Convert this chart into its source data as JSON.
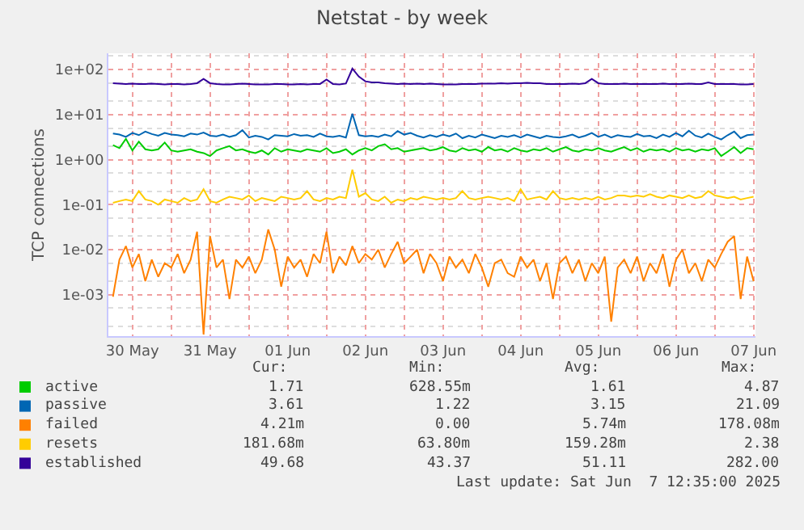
{
  "chart_data": {
    "type": "line",
    "title": "Netstat - by week",
    "ylabel": "TCP connections",
    "x": [
      "2025-05-30T06:00",
      "2025-05-30T08:00",
      "2025-05-30T10:00",
      "2025-05-30T12:00",
      "2025-05-30T14:00",
      "2025-05-30T16:00",
      "2025-05-30T18:00",
      "2025-05-30T20:00",
      "2025-05-30T22:00",
      "2025-05-31T00:00",
      "2025-05-31T02:00",
      "2025-05-31T04:00",
      "2025-05-31T06:00",
      "2025-05-31T08:00",
      "2025-05-31T10:00",
      "2025-05-31T12:00",
      "2025-05-31T14:00",
      "2025-05-31T16:00",
      "2025-05-31T18:00",
      "2025-05-31T20:00",
      "2025-05-31T22:00",
      "2025-06-01T00:00",
      "2025-06-01T02:00",
      "2025-06-01T04:00",
      "2025-06-01T06:00",
      "2025-06-01T08:00",
      "2025-06-01T10:00",
      "2025-06-01T12:00",
      "2025-06-01T14:00",
      "2025-06-01T16:00",
      "2025-06-01T18:00",
      "2025-06-01T20:00",
      "2025-06-01T22:00",
      "2025-06-02T00:00",
      "2025-06-02T02:00",
      "2025-06-02T04:00",
      "2025-06-02T06:00",
      "2025-06-02T08:00",
      "2025-06-02T10:00",
      "2025-06-02T12:00",
      "2025-06-02T14:00",
      "2025-06-02T16:00",
      "2025-06-02T18:00",
      "2025-06-02T20:00",
      "2025-06-02T22:00",
      "2025-06-03T00:00",
      "2025-06-03T02:00",
      "2025-06-03T04:00",
      "2025-06-03T06:00",
      "2025-06-03T08:00",
      "2025-06-03T10:00",
      "2025-06-03T12:00",
      "2025-06-03T14:00",
      "2025-06-03T16:00",
      "2025-06-03T18:00",
      "2025-06-03T20:00",
      "2025-06-03T22:00",
      "2025-06-04T00:00",
      "2025-06-04T02:00",
      "2025-06-04T04:00",
      "2025-06-04T06:00",
      "2025-06-04T08:00",
      "2025-06-04T10:00",
      "2025-06-04T12:00",
      "2025-06-04T14:00",
      "2025-06-04T16:00",
      "2025-06-04T18:00",
      "2025-06-04T20:00",
      "2025-06-04T22:00",
      "2025-06-05T00:00",
      "2025-06-05T02:00",
      "2025-06-05T04:00",
      "2025-06-05T06:00",
      "2025-06-05T08:00",
      "2025-06-05T10:00",
      "2025-06-05T12:00",
      "2025-06-05T14:00",
      "2025-06-05T16:00",
      "2025-06-05T18:00",
      "2025-06-05T20:00",
      "2025-06-05T22:00",
      "2025-06-06T00:00",
      "2025-06-06T02:00",
      "2025-06-06T04:00",
      "2025-06-06T06:00",
      "2025-06-06T08:00",
      "2025-06-06T10:00",
      "2025-06-06T12:00",
      "2025-06-06T14:00",
      "2025-06-06T16:00",
      "2025-06-06T18:00",
      "2025-06-06T20:00",
      "2025-06-06T22:00",
      "2025-06-07T00:00",
      "2025-06-07T02:00",
      "2025-06-07T04:00",
      "2025-06-07T06:00",
      "2025-06-07T08:00",
      "2025-06-07T10:00",
      "2025-06-07T12:00"
    ],
    "xlim": [
      "2025-05-30T04:35",
      "2025-06-07T12:35"
    ],
    "xticks": [
      {
        "value": "2025-05-30T12:00",
        "label": "30 May"
      },
      {
        "value": "2025-05-31T00:00",
        "label": null
      },
      {
        "value": "2025-05-31T12:00",
        "label": "31 May"
      },
      {
        "value": "2025-06-01T00:00",
        "label": null
      },
      {
        "value": "2025-06-01T12:00",
        "label": "01 Jun"
      },
      {
        "value": "2025-06-02T00:00",
        "label": null
      },
      {
        "value": "2025-06-02T12:00",
        "label": "02 Jun"
      },
      {
        "value": "2025-06-03T00:00",
        "label": null
      },
      {
        "value": "2025-06-03T12:00",
        "label": "03 Jun"
      },
      {
        "value": "2025-06-04T00:00",
        "label": null
      },
      {
        "value": "2025-06-04T12:00",
        "label": "04 Jun"
      },
      {
        "value": "2025-06-05T00:00",
        "label": null
      },
      {
        "value": "2025-06-05T12:00",
        "label": "05 Jun"
      },
      {
        "value": "2025-06-06T00:00",
        "label": null
      },
      {
        "value": "2025-06-06T12:00",
        "label": "06 Jun"
      },
      {
        "value": "2025-06-07T00:00",
        "label": null
      },
      {
        "value": "2025-06-07T12:00",
        "label": "07 Jun"
      }
    ],
    "ylim": [
      0.00012,
      230
    ],
    "log": true,
    "yticks": [
      {
        "value": 0.001,
        "label": "1e-03"
      },
      {
        "value": 0.01,
        "label": "1e-02"
      },
      {
        "value": 0.1,
        "label": "1e-01"
      },
      {
        "value": 1,
        "label": "1e+00"
      },
      {
        "value": 10,
        "label": "1e+01"
      },
      {
        "value": 100,
        "label": "1e+02"
      }
    ],
    "grid": true,
    "legend": "bottom",
    "series": [
      {
        "name": "active",
        "color": "#00cc00",
        "values": [
          2.1,
          1.8,
          2.9,
          1.6,
          2.5,
          1.7,
          1.6,
          1.7,
          2.4,
          1.6,
          1.5,
          1.6,
          1.7,
          1.5,
          1.4,
          1.2,
          1.6,
          1.8,
          2.0,
          1.6,
          1.7,
          1.5,
          1.4,
          1.6,
          1.3,
          1.8,
          1.5,
          1.7,
          1.6,
          1.5,
          1.7,
          1.6,
          1.5,
          1.8,
          1.4,
          1.5,
          1.7,
          1.3,
          1.6,
          1.8,
          1.6,
          2.0,
          2.2,
          1.7,
          1.8,
          1.5,
          1.6,
          1.7,
          1.8,
          1.6,
          1.7,
          1.9,
          1.6,
          1.5,
          1.8,
          1.6,
          1.7,
          1.5,
          1.9,
          1.6,
          1.7,
          1.5,
          1.8,
          1.6,
          1.5,
          1.7,
          1.6,
          1.8,
          1.5,
          1.7,
          1.9,
          1.6,
          1.5,
          1.7,
          1.6,
          1.8,
          1.6,
          1.5,
          1.7,
          1.9,
          1.6,
          1.8,
          1.5,
          1.7,
          1.6,
          1.7,
          1.5,
          1.8,
          1.6,
          1.7,
          1.5,
          1.7,
          1.6,
          1.8,
          1.2,
          1.5,
          1.9,
          1.4,
          1.8,
          1.7
        ]
      },
      {
        "name": "passive",
        "color": "#0066b3",
        "values": [
          3.8,
          3.6,
          3.2,
          3.9,
          3.5,
          4.2,
          3.7,
          3.4,
          3.9,
          3.6,
          3.5,
          3.3,
          3.8,
          3.6,
          4.0,
          3.4,
          3.3,
          3.6,
          3.2,
          3.5,
          4.5,
          3.1,
          3.4,
          3.2,
          2.8,
          3.5,
          3.4,
          3.3,
          3.7,
          3.4,
          3.5,
          3.2,
          3.8,
          3.3,
          3.2,
          3.4,
          3.1,
          10.5,
          3.5,
          3.3,
          3.4,
          3.2,
          3.6,
          3.3,
          4.3,
          3.6,
          3.9,
          3.4,
          3.1,
          3.5,
          3.2,
          3.6,
          3.3,
          3.8,
          3.0,
          3.4,
          3.1,
          3.6,
          3.3,
          3.0,
          3.4,
          3.2,
          3.5,
          3.1,
          3.6,
          3.3,
          3.0,
          3.4,
          3.2,
          3.1,
          3.3,
          3.6,
          3.1,
          3.4,
          3.9,
          3.2,
          3.6,
          3.1,
          3.5,
          3.3,
          3.2,
          3.7,
          3.3,
          3.4,
          3.0,
          3.6,
          3.2,
          3.9,
          3.3,
          4.4,
          3.4,
          3.1,
          3.8,
          3.2,
          2.8,
          3.5,
          4.2,
          3.0,
          3.5,
          3.6
        ]
      },
      {
        "name": "failed",
        "color": "#ff8000",
        "values": [
          0.0009,
          0.006,
          0.012,
          0.004,
          0.008,
          0.002,
          0.006,
          0.0025,
          0.005,
          0.004,
          0.008,
          0.003,
          0.006,
          0.025,
          0.00013,
          0.02,
          0.004,
          0.006,
          0.0008,
          0.006,
          0.004,
          0.007,
          0.003,
          0.006,
          0.028,
          0.01,
          0.0015,
          0.007,
          0.004,
          0.006,
          0.0025,
          0.008,
          0.005,
          0.025,
          0.003,
          0.007,
          0.0045,
          0.012,
          0.005,
          0.008,
          0.006,
          0.01,
          0.004,
          0.008,
          0.015,
          0.005,
          0.007,
          0.01,
          0.003,
          0.008,
          0.005,
          0.002,
          0.007,
          0.004,
          0.006,
          0.003,
          0.008,
          0.004,
          0.0015,
          0.005,
          0.006,
          0.003,
          0.0025,
          0.007,
          0.004,
          0.006,
          0.002,
          0.005,
          0.0008,
          0.005,
          0.007,
          0.003,
          0.006,
          0.002,
          0.005,
          0.003,
          0.007,
          0.00025,
          0.004,
          0.006,
          0.003,
          0.007,
          0.002,
          0.005,
          0.003,
          0.008,
          0.0015,
          0.006,
          0.01,
          0.003,
          0.005,
          0.002,
          0.006,
          0.004,
          0.008,
          0.015,
          0.02,
          0.0008,
          0.007,
          0.002
        ]
      },
      {
        "name": "resets",
        "color": "#ffcc00",
        "values": [
          0.11,
          0.12,
          0.13,
          0.12,
          0.2,
          0.13,
          0.12,
          0.1,
          0.13,
          0.12,
          0.11,
          0.14,
          0.12,
          0.13,
          0.22,
          0.12,
          0.11,
          0.13,
          0.15,
          0.14,
          0.13,
          0.16,
          0.12,
          0.14,
          0.13,
          0.12,
          0.15,
          0.14,
          0.13,
          0.14,
          0.2,
          0.13,
          0.12,
          0.14,
          0.13,
          0.15,
          0.14,
          0.6,
          0.15,
          0.18,
          0.13,
          0.12,
          0.15,
          0.11,
          0.13,
          0.12,
          0.14,
          0.13,
          0.15,
          0.14,
          0.13,
          0.14,
          0.13,
          0.14,
          0.2,
          0.14,
          0.13,
          0.14,
          0.15,
          0.14,
          0.13,
          0.14,
          0.12,
          0.22,
          0.13,
          0.14,
          0.15,
          0.13,
          0.2,
          0.14,
          0.13,
          0.14,
          0.13,
          0.14,
          0.13,
          0.15,
          0.13,
          0.14,
          0.16,
          0.16,
          0.15,
          0.16,
          0.15,
          0.17,
          0.15,
          0.14,
          0.16,
          0.15,
          0.14,
          0.16,
          0.14,
          0.15,
          0.2,
          0.16,
          0.15,
          0.14,
          0.15,
          0.13,
          0.14,
          0.15
        ]
      },
      {
        "name": "established",
        "color": "#330099",
        "values": [
          50,
          49,
          48,
          49,
          48,
          48,
          49,
          48,
          47,
          48,
          48,
          47,
          48,
          50,
          62,
          50,
          48,
          47,
          47,
          48,
          49,
          48,
          47,
          47,
          47,
          48,
          48,
          47,
          47,
          48,
          47,
          48,
          48,
          60,
          48,
          47,
          49,
          105,
          70,
          55,
          52,
          52,
          50,
          49,
          48,
          49,
          48,
          49,
          48,
          49,
          48,
          47,
          47,
          47,
          48,
          48,
          48,
          49,
          49,
          49,
          50,
          49,
          50,
          50,
          51,
          50,
          50,
          48,
          48,
          48,
          48,
          49,
          48,
          50,
          62,
          50,
          48,
          48,
          48,
          49,
          48,
          48,
          48,
          48,
          48,
          49,
          48,
          48,
          48,
          49,
          48,
          48,
          52,
          48,
          48,
          48,
          48,
          47,
          47,
          48
        ]
      }
    ],
    "annotations": [
      "Cur:",
      "Min:",
      "Avg:",
      "Max:",
      "1.71",
      "628.55m",
      "1.61",
      "4.87",
      "3.61",
      "1.22",
      "3.15",
      "21.09",
      "4.21m",
      "0.00",
      "5.74m",
      "178.08m",
      "181.68m",
      "63.80m",
      "159.28m",
      "2.38",
      "49.68",
      "43.37",
      "51.11",
      "282.00",
      "Last update: Sat Jun  7 12:35:00 2025"
    ]
  }
}
